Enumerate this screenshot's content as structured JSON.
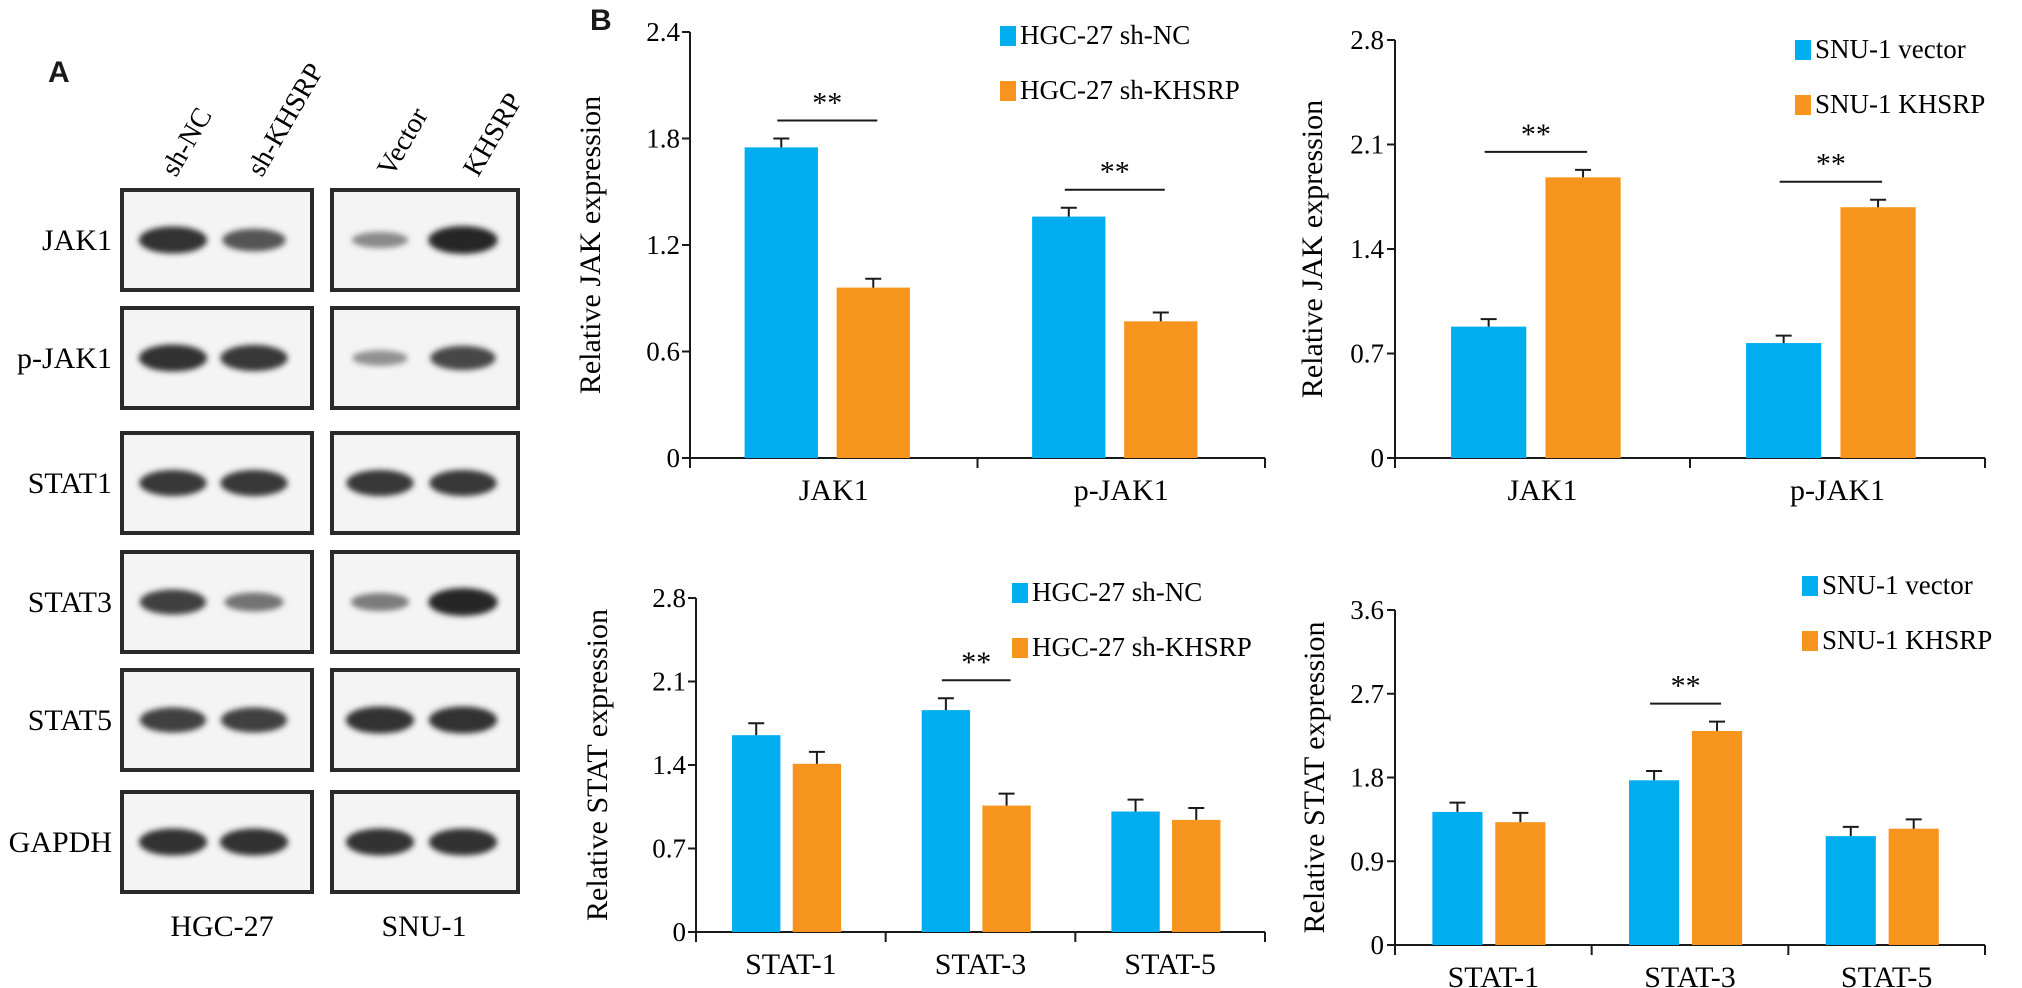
{
  "figure": {
    "panel_a_label": "A",
    "panel_b_label": "B"
  },
  "blots": {
    "lane_labels": [
      "sh-NC",
      "sh-KHSRP",
      "Vector",
      "KHSRP"
    ],
    "rows": [
      "JAK1",
      "p-JAK1",
      "STAT1",
      "STAT3",
      "STAT5",
      "GAPDH"
    ],
    "group_labels": [
      "HGC-27",
      "SNU-1"
    ],
    "band_intensity": [
      [
        0.95,
        0.7,
        0.35,
        1.0
      ],
      [
        0.95,
        0.9,
        0.3,
        0.8
      ],
      [
        0.9,
        0.9,
        0.9,
        0.9
      ],
      [
        0.85,
        0.5,
        0.45,
        1.0
      ],
      [
        0.85,
        0.85,
        0.95,
        0.95
      ],
      [
        0.95,
        0.95,
        0.95,
        0.95
      ]
    ]
  },
  "colors": {
    "series_a": "#00AEEF",
    "series_b": "#F7941D",
    "axis": "#1a1a1a"
  },
  "chart_data": [
    {
      "type": "bar",
      "title": "",
      "ylabel": "Relative JAK expression",
      "categories": [
        "JAK1",
        "p-JAK1"
      ],
      "series": [
        {
          "name": "HGC-27 sh-NC",
          "values": [
            1.75,
            1.36
          ],
          "errors": [
            0.05,
            0.05
          ]
        },
        {
          "name": "HGC-27 sh-KHSRP",
          "values": [
            0.96,
            0.77
          ],
          "errors": [
            0.05,
            0.05
          ]
        }
      ],
      "ylim": [
        0,
        2.4
      ],
      "yticks": [
        "0",
        "0.6",
        "1.2",
        "1.8",
        "2.4"
      ],
      "significance": [
        {
          "category": 0,
          "label": "**"
        },
        {
          "category": 1,
          "label": "**"
        }
      ],
      "legend": "top-right"
    },
    {
      "type": "bar",
      "title": "",
      "ylabel": "Relative JAK expression",
      "categories": [
        "JAK1",
        "p-JAK1"
      ],
      "series": [
        {
          "name": "SNU-1 vector",
          "values": [
            0.88,
            0.77
          ],
          "errors": [
            0.05,
            0.05
          ]
        },
        {
          "name": "SNU-1 KHSRP",
          "values": [
            1.88,
            1.68
          ],
          "errors": [
            0.05,
            0.05
          ]
        }
      ],
      "ylim": [
        0,
        2.8
      ],
      "yticks": [
        "0",
        "0.7",
        "1.4",
        "2.1",
        "2.8"
      ],
      "significance": [
        {
          "category": 0,
          "label": "**"
        },
        {
          "category": 1,
          "label": "**"
        }
      ],
      "legend": "top-right"
    },
    {
      "type": "bar",
      "title": "",
      "ylabel": "Relative STAT expression",
      "categories": [
        "STAT-1",
        "STAT-3",
        "STAT-5"
      ],
      "series": [
        {
          "name": "HGC-27 sh-NC",
          "values": [
            1.65,
            1.86,
            1.01
          ],
          "errors": [
            0.1,
            0.1,
            0.1
          ]
        },
        {
          "name": "HGC-27 sh-KHSRP",
          "values": [
            1.41,
            1.06,
            0.94
          ],
          "errors": [
            0.1,
            0.1,
            0.1
          ]
        }
      ],
      "ylim": [
        0,
        2.8
      ],
      "yticks": [
        "0",
        "0.7",
        "1.4",
        "2.1",
        "2.8"
      ],
      "significance": [
        {
          "category": 1,
          "label": "**"
        }
      ],
      "legend": "top-right"
    },
    {
      "type": "bar",
      "title": "",
      "ylabel": "Relative STAT expression",
      "categories": [
        "STAT-1",
        "STAT-3",
        "STAT-5"
      ],
      "series": [
        {
          "name": "SNU-1 vector",
          "values": [
            1.43,
            1.77,
            1.17
          ],
          "errors": [
            0.1,
            0.1,
            0.1
          ]
        },
        {
          "name": "SNU-1 KHSRP",
          "values": [
            1.32,
            2.3,
            1.25
          ],
          "errors": [
            0.1,
            0.1,
            0.1
          ]
        }
      ],
      "ylim": [
        0,
        3.6
      ],
      "yticks": [
        "0",
        "0.9",
        "1.8",
        "2.7",
        "3.6"
      ],
      "significance": [
        {
          "category": 1,
          "label": "**"
        }
      ],
      "legend": "top-right"
    }
  ]
}
